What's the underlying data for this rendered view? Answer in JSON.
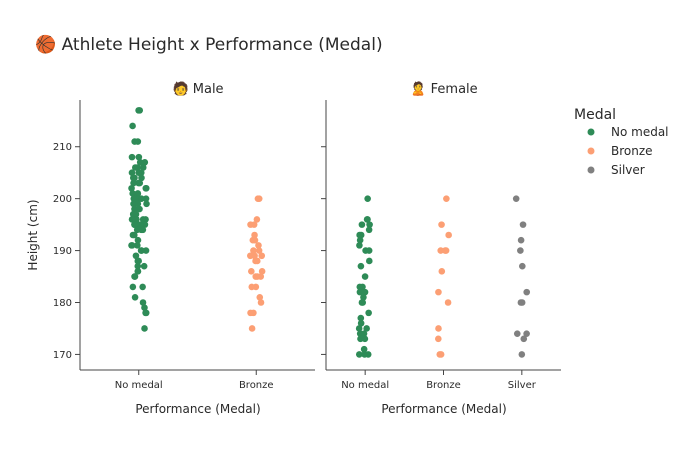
{
  "chart_data": {
    "type": "scatter",
    "title": "🏀 Athlete Height x Performance (Medal)",
    "ylabel": "Height (cm)",
    "ylim": [
      167,
      219
    ],
    "yticks": [
      170,
      180,
      190,
      200,
      210
    ],
    "grid": false,
    "legend": {
      "title": "Medal",
      "position": "top-right",
      "items": [
        {
          "name": "No medal",
          "color": "#2e8b57"
        },
        {
          "name": "Bronze",
          "color": "#fc9f74"
        },
        {
          "name": "Silver",
          "color": "#808080"
        }
      ]
    },
    "facets": [
      {
        "title": "🧑 Male",
        "xlabel": "Performance (Medal)",
        "categories": [
          "No medal",
          "Bronze"
        ],
        "series": [
          {
            "name": "No medal",
            "values": [
              217,
              217,
              214,
              211,
              211,
              208,
              208,
              207,
              207,
              206,
              206,
              206,
              205,
              205,
              205,
              204,
              204,
              204,
              203,
              203,
              203,
              202,
              202,
              202,
              201,
              201,
              200,
              200,
              200,
              200,
              200,
              200,
              199,
              199,
              199,
              198,
              198,
              197,
              197,
              196,
              196,
              196,
              196,
              196,
              195,
              195,
              195,
              195,
              195,
              194,
              194,
              194,
              193,
              193,
              192,
              191,
              191,
              191,
              190,
              190,
              190,
              189,
              188,
              188,
              187,
              187,
              186,
              186,
              185,
              185,
              183,
              183,
              181,
              180,
              179,
              178,
              178,
              175
            ]
          },
          {
            "name": "Bronze",
            "values": [
              200,
              200,
              196,
              195,
              195,
              193,
              192,
              192,
              191,
              190,
              190,
              189,
              189,
              189,
              188,
              188,
              186,
              186,
              185,
              185,
              185,
              183,
              183,
              181,
              180,
              178,
              178,
              175
            ]
          }
        ]
      },
      {
        "title": "🙎 Female",
        "xlabel": "Performance (Medal)",
        "categories": [
          "No medal",
          "Bronze",
          "Silver"
        ],
        "series": [
          {
            "name": "No medal",
            "values": [
              200,
              196,
              196,
              195,
              195,
              194,
              193,
              193,
              192,
              191,
              190,
              190,
              188,
              187,
              185,
              183,
              183,
              182,
              182,
              181,
              180,
              180,
              178,
              177,
              176,
              175,
              175,
              174,
              174,
              173,
              173,
              171,
              170,
              170,
              170
            ]
          },
          {
            "name": "Bronze",
            "values": [
              200,
              195,
              193,
              190,
              190,
              190,
              186,
              182,
              180,
              175,
              173,
              170,
              170
            ]
          },
          {
            "name": "Silver",
            "values": [
              200,
              195,
              192,
              190,
              187,
              182,
              180,
              180,
              174,
              174,
              173,
              170
            ]
          }
        ]
      }
    ]
  }
}
